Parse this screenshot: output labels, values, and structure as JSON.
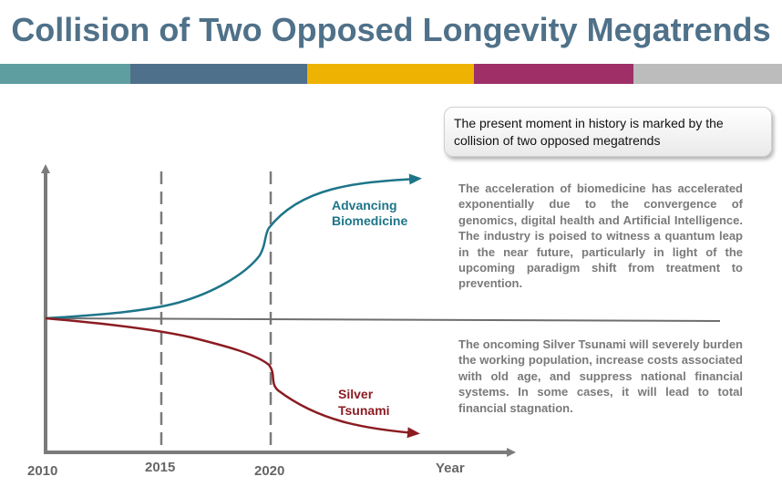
{
  "title": "Collision of Two Opposed Longevity Megatrends",
  "color_bar": [
    "#5f9ea0",
    "#4f708b",
    "#eeb202",
    "#9e3067",
    "#bcbcbc"
  ],
  "callout_text": "The present moment in history is marked by the collision of two opposed megatrends",
  "paragraphs": {
    "biomedicine": "The acceleration of biomedicine has accelerated exponentially due to the convergence of genomics, digital health and Artificial Intelligence. The industry is poised to witness a quantum leap in the near future, particularly in light of the upcoming paradigm shift from treatment to prevention.",
    "silver_tsunami": "The oncoming Silver Tsunami will severely burden the working population, increase costs associated with old age, and suppress national financial systems. In some cases, it will lead to total financial stagnation."
  },
  "diagram": {
    "x_axis_label": "Year",
    "ticks": [
      "2010",
      "2015",
      "2020"
    ],
    "curves": {
      "advancing": {
        "line1": "Advancing",
        "line2": "Biomedicine",
        "color": "#1e7589"
      },
      "silver": {
        "line1": "Silver",
        "line2": "Tsunami",
        "color": "#8b1c22"
      }
    },
    "axis_color": "#7b7b7b",
    "baseline_color": "#6e6e6e"
  }
}
